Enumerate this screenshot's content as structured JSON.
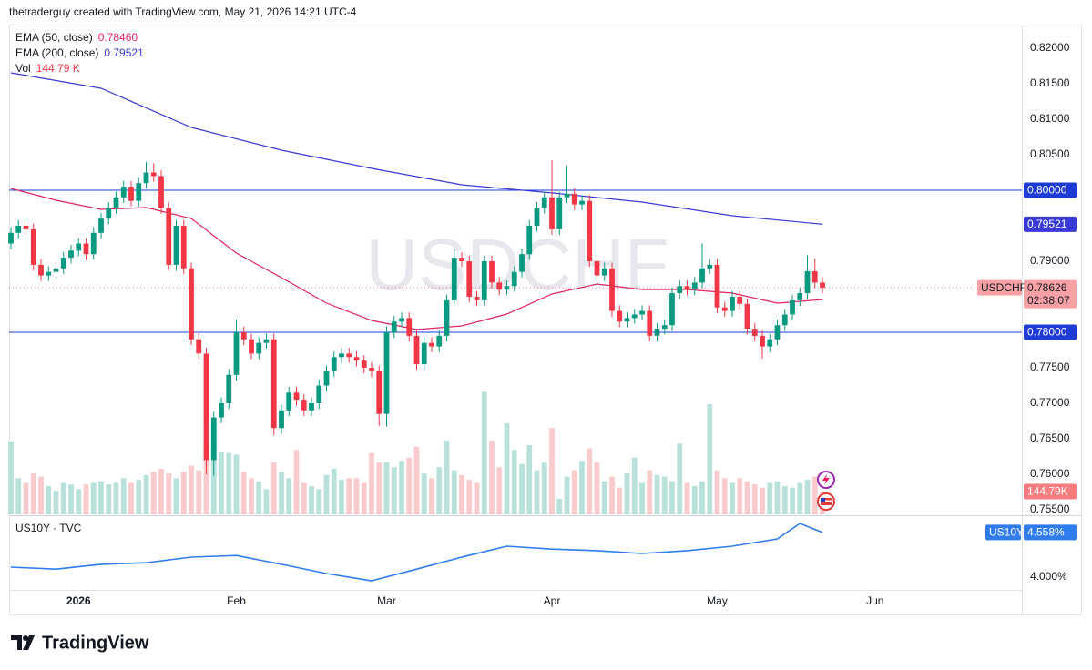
{
  "header": "thetraderguy created with TradingView.com, May 21, 2026 14:21 UTC-4",
  "brand": "TradingView",
  "chart_data": [
    {
      "type": "candlestick",
      "symbol": "USDCHF",
      "countdown": "02:38:07",
      "up_color": "#089981",
      "down_color": "#f23645",
      "volume_up_color": "#b9e1dc",
      "volume_down_color": "#f9cbcd",
      "xlim": [
        0,
        134
      ],
      "xticks": [
        {
          "value": 9,
          "label": "2026"
        },
        {
          "value": 30,
          "label": "Feb"
        },
        {
          "value": 50,
          "label": "Mar"
        },
        {
          "value": 72,
          "label": "Apr"
        },
        {
          "value": 94,
          "label": "May"
        },
        {
          "value": 115,
          "label": "Jun"
        }
      ],
      "ylim": [
        0.75436,
        0.82333
      ],
      "yticks": [
        {
          "value": 0.82,
          "label": "0.82000"
        },
        {
          "value": 0.815,
          "label": "0.81500"
        },
        {
          "value": 0.81,
          "label": "0.81000"
        },
        {
          "value": 0.805,
          "label": "0.80500"
        },
        {
          "value": 0.79,
          "label": "0.79000"
        },
        {
          "value": 0.775,
          "label": "0.77500"
        },
        {
          "value": 0.77,
          "label": "0.77000"
        },
        {
          "value": 0.765,
          "label": "0.76500"
        },
        {
          "value": 0.76,
          "label": "0.76000"
        },
        {
          "value": 0.755,
          "label": "0.75500"
        }
      ],
      "grid": false,
      "ohlc": {
        "open": [
          0.7925,
          0.794,
          0.795,
          0.7945,
          0.7895,
          0.788,
          0.7885,
          0.789,
          0.7905,
          0.7915,
          0.7925,
          0.791,
          0.794,
          0.796,
          0.7975,
          0.799,
          0.8005,
          0.7985,
          0.801,
          0.8025,
          0.802,
          0.7975,
          0.7895,
          0.795,
          0.789,
          0.779,
          0.777,
          0.762,
          0.768,
          0.77,
          0.774,
          0.78,
          0.779,
          0.777,
          0.7785,
          0.779,
          0.7665,
          0.769,
          0.7715,
          0.7705,
          0.769,
          0.77,
          0.7725,
          0.7745,
          0.7765,
          0.777,
          0.7765,
          0.776,
          0.775,
          0.7745,
          0.7685,
          0.78,
          0.7815,
          0.782,
          0.7795,
          0.7755,
          0.7785,
          0.778,
          0.7795,
          0.7845,
          0.7905,
          0.79,
          0.785,
          0.7845,
          0.79,
          0.787,
          0.786,
          0.7865,
          0.7885,
          0.791,
          0.795,
          0.7975,
          0.799,
          0.7945,
          0.799,
          0.7995,
          0.798,
          0.7985,
          0.79,
          0.788,
          0.789,
          0.783,
          0.7815,
          0.782,
          0.7825,
          0.783,
          0.7795,
          0.7805,
          0.781,
          0.7855,
          0.7865,
          0.786,
          0.787,
          0.789,
          0.7895,
          0.7835,
          0.783,
          0.785,
          0.784,
          0.7805,
          0.7795,
          0.778,
          0.779,
          0.781,
          0.7825,
          0.7845,
          0.7855,
          0.7886,
          0.787
        ],
        "high": [
          0.7948,
          0.7958,
          0.7958,
          0.7953,
          0.7903,
          0.7893,
          0.7898,
          0.7913,
          0.7923,
          0.7933,
          0.7933,
          0.7948,
          0.7968,
          0.7983,
          0.7998,
          0.8013,
          0.8013,
          0.8018,
          0.804,
          0.8038,
          0.8028,
          0.7983,
          0.7958,
          0.7958,
          0.7898,
          0.7798,
          0.7778,
          0.7688,
          0.7708,
          0.7748,
          0.7818,
          0.7808,
          0.7798,
          0.7793,
          0.7798,
          0.7798,
          0.7698,
          0.7723,
          0.7723,
          0.7713,
          0.7708,
          0.7733,
          0.7753,
          0.7773,
          0.7778,
          0.7778,
          0.7773,
          0.7768,
          0.7758,
          0.7753,
          0.7808,
          0.7823,
          0.7828,
          0.7828,
          0.7803,
          0.7793,
          0.7793,
          0.7803,
          0.7853,
          0.7918,
          0.7913,
          0.7908,
          0.7858,
          0.7908,
          0.7908,
          0.7878,
          0.7873,
          0.7893,
          0.7918,
          0.7958,
          0.7983,
          0.7998,
          0.8042,
          0.7998,
          0.8035,
          0.8003,
          0.7993,
          0.7993,
          0.7908,
          0.7898,
          0.7898,
          0.7838,
          0.7828,
          0.7833,
          0.7838,
          0.7838,
          0.7813,
          0.7818,
          0.7863,
          0.7873,
          0.7873,
          0.7878,
          0.7925,
          0.7903,
          0.7903,
          0.7843,
          0.7858,
          0.7858,
          0.7848,
          0.7813,
          0.7803,
          0.7798,
          0.7818,
          0.7833,
          0.7853,
          0.7863,
          0.7908,
          0.7904,
          0.7878
        ],
        "low": [
          0.7917,
          0.7932,
          0.7937,
          0.7887,
          0.7872,
          0.7872,
          0.7877,
          0.7882,
          0.7897,
          0.7907,
          0.7902,
          0.7902,
          0.7932,
          0.7952,
          0.7967,
          0.7982,
          0.7977,
          0.7977,
          0.8002,
          0.8012,
          0.7967,
          0.7887,
          0.7887,
          0.7882,
          0.7782,
          0.7762,
          0.76,
          0.7598,
          0.7672,
          0.7692,
          0.7732,
          0.7782,
          0.7762,
          0.7762,
          0.7777,
          0.7655,
          0.7657,
          0.7682,
          0.7697,
          0.7682,
          0.7682,
          0.7692,
          0.7717,
          0.7737,
          0.7757,
          0.7757,
          0.7752,
          0.7742,
          0.7737,
          0.7668,
          0.7667,
          0.7792,
          0.7807,
          0.7787,
          0.7747,
          0.7747,
          0.7772,
          0.7772,
          0.7787,
          0.7837,
          0.7892,
          0.7842,
          0.7837,
          0.7837,
          0.7862,
          0.7852,
          0.7852,
          0.7857,
          0.7877,
          0.7902,
          0.7942,
          0.7967,
          0.7937,
          0.7937,
          0.7982,
          0.7972,
          0.7972,
          0.7892,
          0.7872,
          0.7872,
          0.7822,
          0.7807,
          0.7807,
          0.7812,
          0.7817,
          0.7787,
          0.7787,
          0.7797,
          0.7802,
          0.7847,
          0.7852,
          0.7852,
          0.7862,
          0.7882,
          0.7827,
          0.7822,
          0.7822,
          0.7832,
          0.7797,
          0.7787,
          0.7763,
          0.7772,
          0.7782,
          0.7802,
          0.7817,
          0.7837,
          0.7847,
          0.7862,
          0.7855
        ],
        "close": [
          0.794,
          0.795,
          0.7945,
          0.7895,
          0.788,
          0.7885,
          0.789,
          0.7905,
          0.7915,
          0.7925,
          0.791,
          0.794,
          0.796,
          0.7975,
          0.799,
          0.8005,
          0.7985,
          0.801,
          0.8025,
          0.802,
          0.7975,
          0.7895,
          0.795,
          0.789,
          0.779,
          0.777,
          0.762,
          0.768,
          0.77,
          0.774,
          0.78,
          0.779,
          0.777,
          0.7785,
          0.779,
          0.7665,
          0.769,
          0.7715,
          0.7705,
          0.769,
          0.77,
          0.7725,
          0.7745,
          0.7765,
          0.777,
          0.7765,
          0.776,
          0.775,
          0.7745,
          0.7685,
          0.78,
          0.7815,
          0.782,
          0.7795,
          0.7755,
          0.7785,
          0.778,
          0.7795,
          0.7845,
          0.7905,
          0.79,
          0.785,
          0.7845,
          0.79,
          0.787,
          0.786,
          0.7865,
          0.7885,
          0.791,
          0.795,
          0.7975,
          0.799,
          0.7945,
          0.799,
          0.7995,
          0.798,
          0.7985,
          0.79,
          0.788,
          0.789,
          0.783,
          0.7815,
          0.782,
          0.7825,
          0.783,
          0.7795,
          0.7805,
          0.781,
          0.7855,
          0.7865,
          0.786,
          0.787,
          0.789,
          0.7895,
          0.7835,
          0.783,
          0.785,
          0.784,
          0.7805,
          0.7795,
          0.778,
          0.779,
          0.781,
          0.7825,
          0.7845,
          0.7855,
          0.7886,
          0.787,
          0.78626
        ]
      },
      "series": [
        {
          "name": "EMA (50, close)",
          "color": "#e0245e",
          "x": [
            0,
            6,
            12,
            18,
            24,
            30,
            36,
            42,
            48,
            54,
            60,
            66,
            72,
            78,
            84,
            90,
            96,
            102,
            108
          ],
          "values": [
            0.80026,
            0.79859,
            0.79731,
            0.79756,
            0.79603,
            0.79115,
            0.78769,
            0.7841,
            0.78167,
            0.78038,
            0.7809,
            0.78256,
            0.78538,
            0.78679,
            0.78603,
            0.78603,
            0.78551,
            0.7841,
            0.7846
          ],
          "last": {
            "value": 0.7846,
            "label": "0.78460"
          }
        },
        {
          "name": "EMA (200, close)",
          "color": "#3a3ad8",
          "x": [
            0,
            12,
            24,
            36,
            48,
            60,
            72,
            84,
            96,
            108
          ],
          "values": [
            0.81654,
            0.81436,
            0.80885,
            0.80564,
            0.80308,
            0.80077,
            0.79962,
            0.79833,
            0.79641,
            0.79521
          ],
          "last": {
            "value": 0.79521,
            "label": "0.79521"
          }
        }
      ],
      "hlines": [
        {
          "value": 0.8,
          "label": "0.80000",
          "color": "#1e3bd6"
        },
        {
          "value": 0.78,
          "label": "0.78000",
          "color": "#1e3bd6"
        }
      ],
      "volume": {
        "name": "Vol",
        "ylim": [
          0,
          950
        ],
        "values": [
          465,
          230,
          200,
          260,
          240,
          180,
          150,
          200,
          190,
          160,
          190,
          200,
          210,
          190,
          200,
          230,
          200,
          220,
          250,
          270,
          290,
          260,
          230,
          270,
          310,
          280,
          420,
          440,
          400,
          390,
          380,
          270,
          230,
          210,
          160,
          330,
          270,
          230,
          410,
          200,
          180,
          160,
          250,
          290,
          220,
          230,
          230,
          200,
          390,
          330,
          330,
          300,
          340,
          360,
          430,
          260,
          230,
          300,
          470,
          280,
          250,
          220,
          200,
          780,
          470,
          300,
          580,
          410,
          320,
          440,
          280,
          330,
          550,
          100,
          240,
          280,
          340,
          420,
          330,
          210,
          240,
          170,
          260,
          360,
          200,
          280,
          250,
          240,
          210,
          450,
          200,
          180,
          210,
          700,
          280,
          230,
          200,
          230,
          210,
          190,
          170,
          200,
          210,
          180,
          170,
          200,
          220,
          240,
          144.79
        ],
        "last": {
          "value": 144.79,
          "label": "144.79 K",
          "badge": "144.79K"
        }
      }
    },
    {
      "type": "line",
      "title": "US10Y · TVC",
      "name": "US10Y",
      "color": "#2f7bf0",
      "x": [
        0,
        6,
        12,
        18,
        24,
        30,
        36,
        42,
        48,
        54,
        60,
        66,
        72,
        78,
        84,
        90,
        96,
        102,
        105,
        108
      ],
      "values": [
        4.125,
        4.1,
        4.16,
        4.18,
        4.25,
        4.27,
        4.16,
        4.045,
        3.955,
        4.1,
        4.25,
        4.386,
        4.35,
        4.33,
        4.295,
        4.33,
        4.386,
        4.477,
        4.67,
        4.558
      ],
      "last": {
        "value": 4.558,
        "label": "4.558%"
      },
      "ylim": [
        3.841,
        4.761
      ],
      "yticks": [
        {
          "value": 4,
          "label": "4.000%"
        }
      ]
    }
  ]
}
